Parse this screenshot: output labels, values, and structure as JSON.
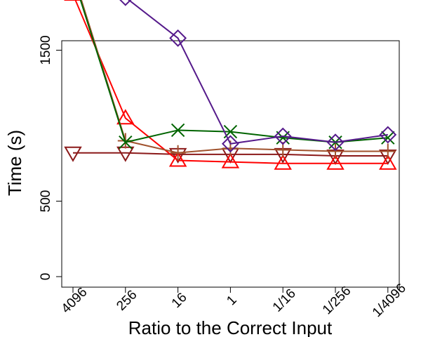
{
  "chart_data": {
    "type": "line",
    "title": "",
    "xlabel": "Ratio to the Correct Input",
    "ylabel": "Time (s)",
    "categories": [
      "4096",
      "256",
      "16",
      "1",
      "1/16",
      "1/256",
      "1/4096"
    ],
    "yticks": [
      "0",
      "500",
      "1500",
      "2500"
    ],
    "ylim": [
      -100,
      3100
    ],
    "grid": false,
    "legend": "none",
    "series": [
      {
        "color": "#8b1a1a",
        "marker": "triangle-down",
        "values": [
          820,
          820,
          810,
          810,
          810,
          800,
          800
        ]
      },
      {
        "color": "#ff0000",
        "marker": "triangle-up",
        "values": [
          1870,
          1050,
          770,
          760,
          750,
          750,
          750
        ]
      },
      {
        "color": "#a0522d",
        "marker": "plus",
        "values": [
          2010,
          900,
          820,
          850,
          840,
          830,
          830
        ]
      },
      {
        "color": "#006400",
        "marker": "x",
        "values": [
          1990,
          890,
          970,
          960,
          920,
          890,
          920
        ]
      },
      {
        "color": "#551a8b",
        "marker": "diamond",
        "values": [
          2620,
          1850,
          1580,
          880,
          930,
          890,
          940
        ]
      }
    ]
  }
}
